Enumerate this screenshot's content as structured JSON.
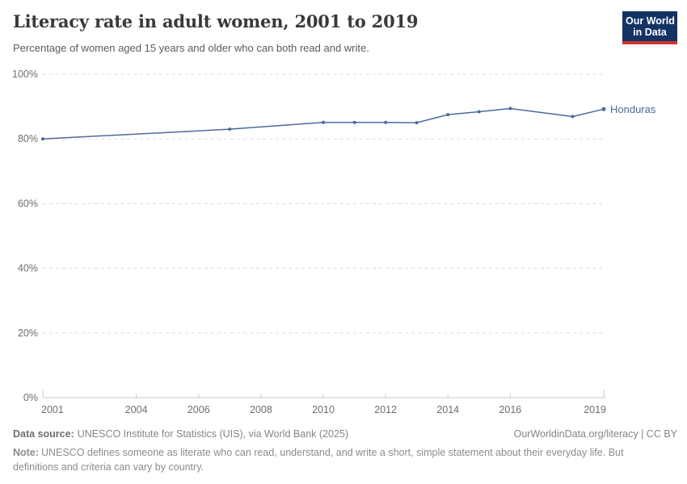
{
  "header": {
    "title": "Literacy rate in adult women, 2001 to 2019",
    "subtitle": "Percentage of women aged 15 years and older who can both read and write.",
    "logo": {
      "line1": "Our World",
      "line2": "in Data"
    }
  },
  "chart_data": {
    "type": "line",
    "title": "Literacy rate in adult women, 2001 to 2019",
    "series": [
      {
        "name": "Honduras",
        "x": [
          2001,
          2007,
          2010,
          2011,
          2012,
          2013,
          2014,
          2015,
          2016,
          2018,
          2019
        ],
        "values": [
          80.0,
          83.0,
          85.1,
          85.1,
          85.1,
          85.0,
          87.5,
          88.4,
          89.4,
          86.9,
          89.2
        ],
        "color": "#4c6a9c"
      }
    ],
    "xlabel": "",
    "ylabel": "",
    "xlim": [
      2001,
      2019
    ],
    "ylim": [
      0,
      100
    ],
    "x_ticks": [
      2001,
      2004,
      2006,
      2008,
      2010,
      2012,
      2014,
      2016,
      2019
    ],
    "y_ticks": [
      0,
      20,
      40,
      60,
      80,
      100
    ],
    "y_tick_suffix": "%",
    "grid": "horizontal-dashed",
    "legend": "end-of-line-label"
  },
  "footer": {
    "data_source_label": "Data source:",
    "data_source": "UNESCO Institute for Statistics (UIS), via World Bank (2025)",
    "attribution": "OurWorldinData.org/literacy | CC BY",
    "note_label": "Note:",
    "note": "UNESCO defines someone as literate who can read, understand, and write a short, simple statement about their everyday life. But definitions and criteria can vary by country."
  },
  "colors": {
    "line": "#4c6a9c",
    "title_text": "#393939",
    "subtitle_text": "#5b5b5b",
    "axis_text": "#6e6e6e",
    "gridline": "#dcdcdc",
    "axis_line": "#c8c8c8",
    "logo_bg": "#143365",
    "logo_accent": "#cf3430",
    "footer_text": "#858585"
  }
}
